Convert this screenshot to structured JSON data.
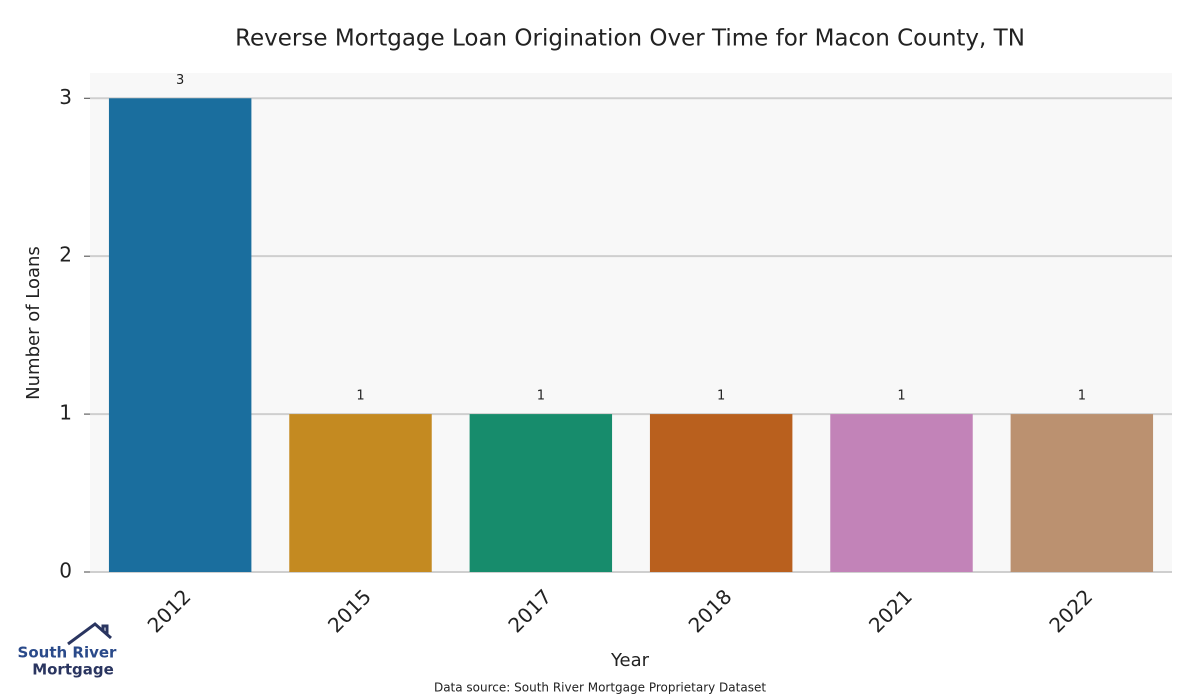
{
  "chart_data": {
    "type": "bar",
    "title": "Reverse Mortgage Loan Origination Over Time for Macon County, TN",
    "x_label": "Year",
    "y_label": "Number of Loans",
    "categories": [
      "2012",
      "2015",
      "2017",
      "2018",
      "2021",
      "2022"
    ],
    "values": [
      3,
      1,
      1,
      1,
      1,
      1
    ],
    "colors": [
      "#1a6e9e",
      "#c48a21",
      "#178c6c",
      "#b9601e",
      "#c283b8",
      "#bb9170"
    ],
    "ylim": [
      0,
      3.16
    ],
    "yticks": [
      0,
      1,
      2,
      3
    ],
    "grid": true
  },
  "logo": [
    "South River",
    "Mortgage"
  ],
  "source": "Data source: South River Mortgage Proprietary Dataset"
}
